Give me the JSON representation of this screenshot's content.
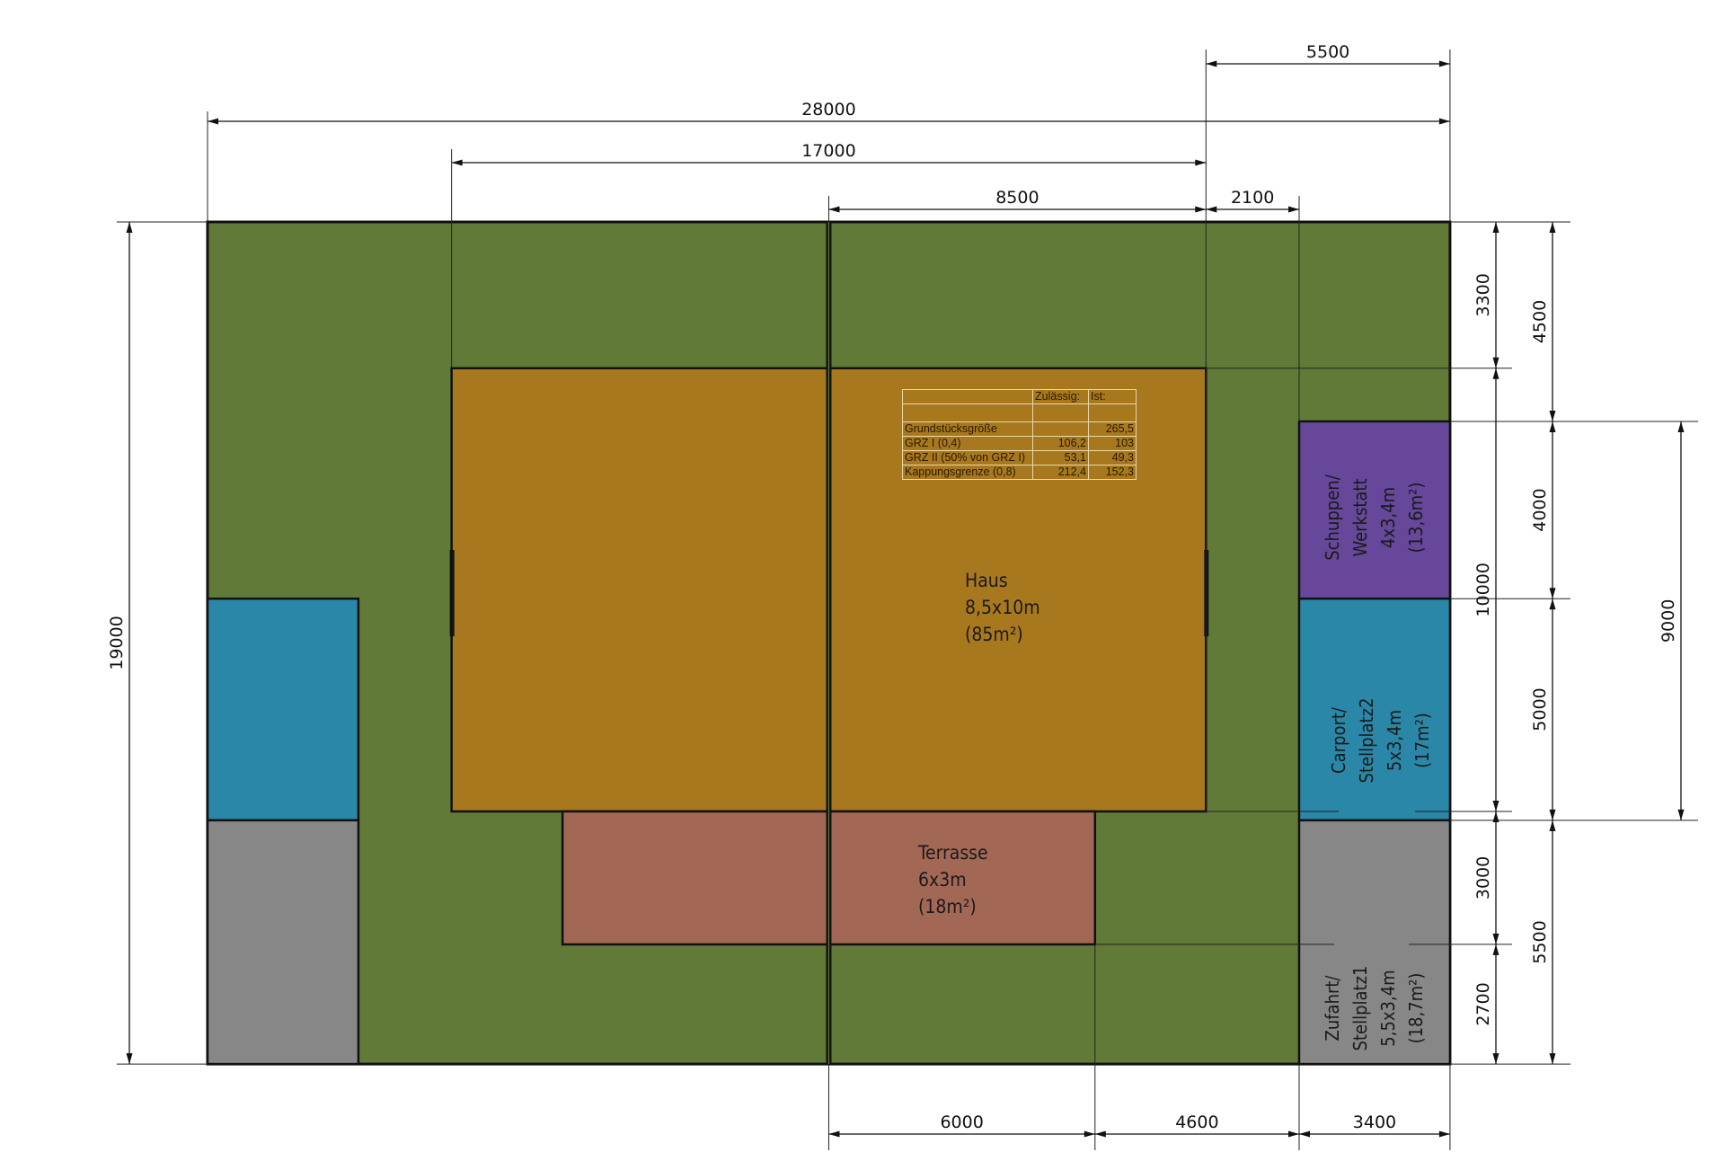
{
  "colors": {
    "garden": "#617a38",
    "house": "#a8781f",
    "terrace": "#a36855",
    "shed": "#66479a",
    "carport": "#2a87a8",
    "driveway": "#878787"
  },
  "labels": {
    "house": [
      "Haus",
      "8,5x10m",
      "(85m²)"
    ],
    "terrace": [
      "Terrasse",
      "6x3m",
      "(18m²)"
    ],
    "shed": [
      "Schuppen/",
      "Werkstatt",
      "4x3,4m",
      "(13,6m²)"
    ],
    "carport": [
      "Carport/",
      "Stellplatz2",
      "5x3,4m",
      "(17m²)"
    ],
    "driveway": [
      "Zufahrt/",
      "Stellplatz1",
      "5,5x3,4m",
      "(18,7m²)"
    ]
  },
  "dimensions": {
    "top": [
      "5500",
      "28000",
      "17000",
      "8500",
      "2100"
    ],
    "bottom": [
      "6000",
      "4600",
      "3400"
    ],
    "left": [
      "19000"
    ],
    "right1": [
      "3300",
      "10000",
      "3000",
      "2700"
    ],
    "right2": [
      "4500",
      "4000",
      "5000",
      "5500"
    ],
    "right3": [
      "9000"
    ]
  },
  "table": {
    "headers": [
      "",
      "Zulässig:",
      "Ist:"
    ],
    "rows": [
      [
        "",
        "",
        ""
      ],
      [
        "Grundstücksgröße",
        "",
        "265,5"
      ],
      [
        "GRZ I (0,4)",
        "106,2",
        "103"
      ],
      [
        "GRZ II (50% von GRZ I)",
        "53,1",
        "49,3"
      ],
      [
        "Kappungsgrenze (0,8)",
        "212,4",
        "152,3"
      ]
    ]
  }
}
